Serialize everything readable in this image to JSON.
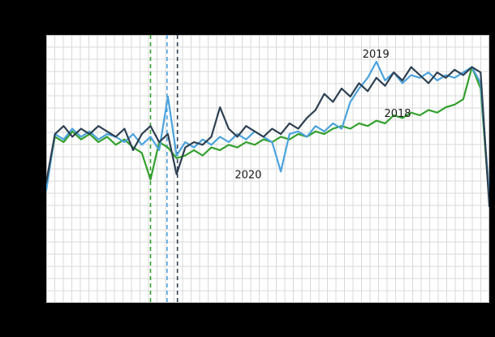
{
  "figure": {
    "background": "#000000",
    "plot_background": "#ffffff"
  },
  "chart_data": {
    "type": "line",
    "title": "",
    "xlabel": "",
    "ylabel": "",
    "x": {
      "start": 1,
      "end": 52,
      "step": 1,
      "unit": "week"
    },
    "y_range": [
      0,
      100
    ],
    "y_note": "axis tick labels not visible in image; values estimated from gridlines on 0-100 scale",
    "grid": {
      "vertical_intervals": 52,
      "horizontal_intervals": 22,
      "color": "#d9d9d9",
      "border_color": "#bdbdbd"
    },
    "series": [
      {
        "name": "2018",
        "color": "#33a02c",
        "values": [
          44,
          62,
          60,
          64,
          61,
          63,
          60,
          62,
          59,
          61,
          58,
          56,
          46,
          60,
          58,
          54,
          55,
          57,
          55,
          58,
          57,
          59,
          58,
          60,
          59,
          61,
          60,
          62,
          61,
          63,
          62,
          64,
          63,
          65,
          66,
          65,
          67,
          66,
          68,
          67,
          70,
          69,
          71,
          70,
          72,
          71,
          73,
          74,
          76,
          88,
          80,
          38
        ]
      },
      {
        "name": "2019",
        "color": "#4ba3dd",
        "values": [
          42,
          63,
          61,
          65,
          62,
          64,
          61,
          63,
          62,
          60,
          63,
          59,
          62,
          57,
          77,
          55,
          60,
          58,
          61,
          59,
          62,
          60,
          63,
          61,
          64,
          62,
          60,
          49,
          63,
          64,
          62,
          66,
          64,
          67,
          65,
          75,
          80,
          84,
          90,
          83,
          86,
          82,
          85,
          84,
          86,
          83,
          85,
          84,
          86,
          88,
          82,
          40
        ]
      },
      {
        "name": "2020",
        "color": "#2e4052",
        "values": [
          45,
          63,
          66,
          62,
          65,
          63,
          66,
          64,
          62,
          65,
          57,
          63,
          66,
          60,
          63,
          48,
          58,
          60,
          59,
          62,
          73,
          65,
          62,
          66,
          64,
          62,
          65,
          63,
          67,
          65,
          69,
          72,
          78,
          75,
          80,
          77,
          82,
          79,
          84,
          81,
          86,
          83,
          88,
          85,
          82,
          86,
          84,
          87,
          85,
          88,
          86,
          36
        ]
      }
    ],
    "event_markers": [
      {
        "series": "2018",
        "week": 13.0,
        "style": "dashed",
        "color": "#33a02c"
      },
      {
        "series": "2019",
        "week": 14.9,
        "style": "dashed",
        "color": "#4ba3dd"
      },
      {
        "series": "2020",
        "week": 16.1,
        "style": "dashed",
        "color": "#2e4052"
      }
    ],
    "annotations": [
      {
        "text": "2019",
        "week": 37.4,
        "value": 91.5,
        "color": "#1a1a1a"
      },
      {
        "text": "2018",
        "week": 39.9,
        "value": 69.4,
        "color": "#1a1a1a"
      },
      {
        "text": "2020",
        "week": 22.7,
        "value": 46.5,
        "color": "#1a1a1a"
      }
    ],
    "legend": "none (series labeled by in-plot annotations)"
  }
}
